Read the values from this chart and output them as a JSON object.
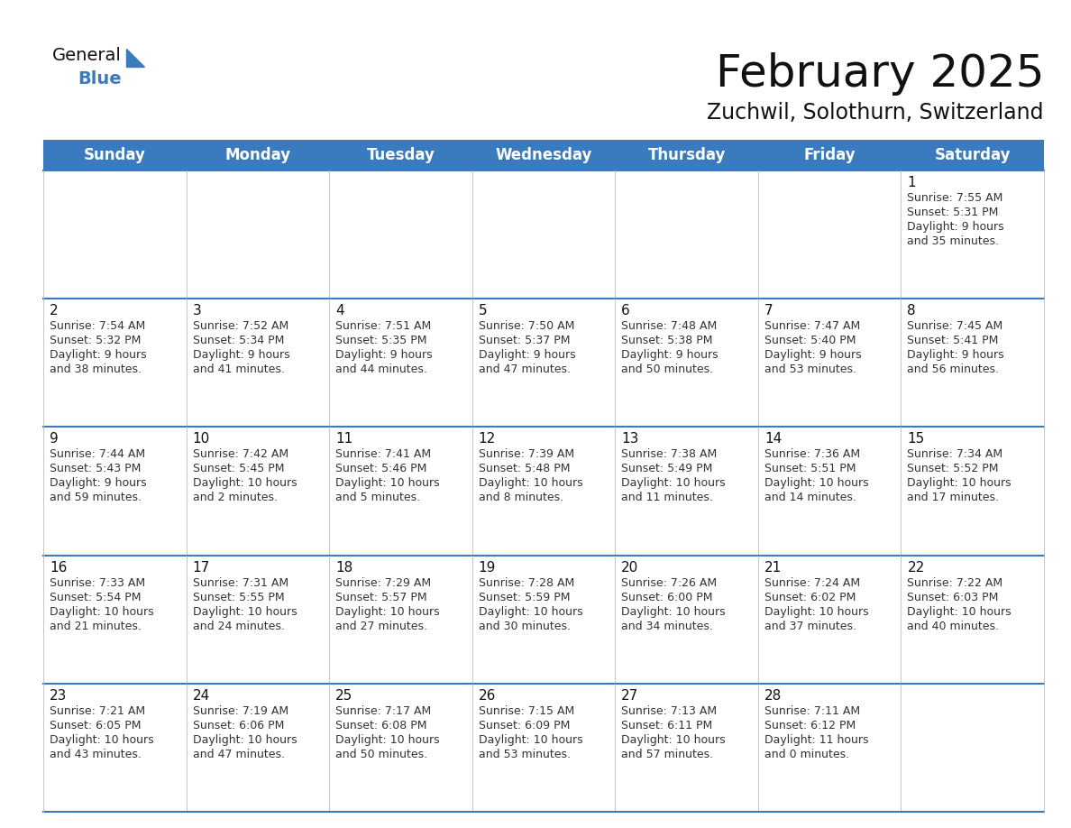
{
  "title": "February 2025",
  "subtitle": "Zuchwil, Solothurn, Switzerland",
  "header_color": "#3a7abf",
  "header_text_color": "#ffffff",
  "border_color": "#3a7abf",
  "cell_line_color": "#aaaaaa",
  "day_headers": [
    "Sunday",
    "Monday",
    "Tuesday",
    "Wednesday",
    "Thursday",
    "Friday",
    "Saturday"
  ],
  "title_fontsize": 36,
  "subtitle_fontsize": 17,
  "day_num_fontsize": 11,
  "cell_text_fontsize": 9,
  "header_fontsize": 12,
  "calendar_data": [
    [
      null,
      null,
      null,
      null,
      null,
      null,
      {
        "day": "1",
        "sunrise": "7:55 AM",
        "sunset": "5:31 PM",
        "daylight_line1": "9 hours",
        "daylight_line2": "and 35 minutes."
      }
    ],
    [
      {
        "day": "2",
        "sunrise": "7:54 AM",
        "sunset": "5:32 PM",
        "daylight_line1": "9 hours",
        "daylight_line2": "and 38 minutes."
      },
      {
        "day": "3",
        "sunrise": "7:52 AM",
        "sunset": "5:34 PM",
        "daylight_line1": "9 hours",
        "daylight_line2": "and 41 minutes."
      },
      {
        "day": "4",
        "sunrise": "7:51 AM",
        "sunset": "5:35 PM",
        "daylight_line1": "9 hours",
        "daylight_line2": "and 44 minutes."
      },
      {
        "day": "5",
        "sunrise": "7:50 AM",
        "sunset": "5:37 PM",
        "daylight_line1": "9 hours",
        "daylight_line2": "and 47 minutes."
      },
      {
        "day": "6",
        "sunrise": "7:48 AM",
        "sunset": "5:38 PM",
        "daylight_line1": "9 hours",
        "daylight_line2": "and 50 minutes."
      },
      {
        "day": "7",
        "sunrise": "7:47 AM",
        "sunset": "5:40 PM",
        "daylight_line1": "9 hours",
        "daylight_line2": "and 53 minutes."
      },
      {
        "day": "8",
        "sunrise": "7:45 AM",
        "sunset": "5:41 PM",
        "daylight_line1": "9 hours",
        "daylight_line2": "and 56 minutes."
      }
    ],
    [
      {
        "day": "9",
        "sunrise": "7:44 AM",
        "sunset": "5:43 PM",
        "daylight_line1": "9 hours",
        "daylight_line2": "and 59 minutes."
      },
      {
        "day": "10",
        "sunrise": "7:42 AM",
        "sunset": "5:45 PM",
        "daylight_line1": "10 hours",
        "daylight_line2": "and 2 minutes."
      },
      {
        "day": "11",
        "sunrise": "7:41 AM",
        "sunset": "5:46 PM",
        "daylight_line1": "10 hours",
        "daylight_line2": "and 5 minutes."
      },
      {
        "day": "12",
        "sunrise": "7:39 AM",
        "sunset": "5:48 PM",
        "daylight_line1": "10 hours",
        "daylight_line2": "and 8 minutes."
      },
      {
        "day": "13",
        "sunrise": "7:38 AM",
        "sunset": "5:49 PM",
        "daylight_line1": "10 hours",
        "daylight_line2": "and 11 minutes."
      },
      {
        "day": "14",
        "sunrise": "7:36 AM",
        "sunset": "5:51 PM",
        "daylight_line1": "10 hours",
        "daylight_line2": "and 14 minutes."
      },
      {
        "day": "15",
        "sunrise": "7:34 AM",
        "sunset": "5:52 PM",
        "daylight_line1": "10 hours",
        "daylight_line2": "and 17 minutes."
      }
    ],
    [
      {
        "day": "16",
        "sunrise": "7:33 AM",
        "sunset": "5:54 PM",
        "daylight_line1": "10 hours",
        "daylight_line2": "and 21 minutes."
      },
      {
        "day": "17",
        "sunrise": "7:31 AM",
        "sunset": "5:55 PM",
        "daylight_line1": "10 hours",
        "daylight_line2": "and 24 minutes."
      },
      {
        "day": "18",
        "sunrise": "7:29 AM",
        "sunset": "5:57 PM",
        "daylight_line1": "10 hours",
        "daylight_line2": "and 27 minutes."
      },
      {
        "day": "19",
        "sunrise": "7:28 AM",
        "sunset": "5:59 PM",
        "daylight_line1": "10 hours",
        "daylight_line2": "and 30 minutes."
      },
      {
        "day": "20",
        "sunrise": "7:26 AM",
        "sunset": "6:00 PM",
        "daylight_line1": "10 hours",
        "daylight_line2": "and 34 minutes."
      },
      {
        "day": "21",
        "sunrise": "7:24 AM",
        "sunset": "6:02 PM",
        "daylight_line1": "10 hours",
        "daylight_line2": "and 37 minutes."
      },
      {
        "day": "22",
        "sunrise": "7:22 AM",
        "sunset": "6:03 PM",
        "daylight_line1": "10 hours",
        "daylight_line2": "and 40 minutes."
      }
    ],
    [
      {
        "day": "23",
        "sunrise": "7:21 AM",
        "sunset": "6:05 PM",
        "daylight_line1": "10 hours",
        "daylight_line2": "and 43 minutes."
      },
      {
        "day": "24",
        "sunrise": "7:19 AM",
        "sunset": "6:06 PM",
        "daylight_line1": "10 hours",
        "daylight_line2": "and 47 minutes."
      },
      {
        "day": "25",
        "sunrise": "7:17 AM",
        "sunset": "6:08 PM",
        "daylight_line1": "10 hours",
        "daylight_line2": "and 50 minutes."
      },
      {
        "day": "26",
        "sunrise": "7:15 AM",
        "sunset": "6:09 PM",
        "daylight_line1": "10 hours",
        "daylight_line2": "and 53 minutes."
      },
      {
        "day": "27",
        "sunrise": "7:13 AM",
        "sunset": "6:11 PM",
        "daylight_line1": "10 hours",
        "daylight_line2": "and 57 minutes."
      },
      {
        "day": "28",
        "sunrise": "7:11 AM",
        "sunset": "6:12 PM",
        "daylight_line1": "11 hours",
        "daylight_line2": "and 0 minutes."
      },
      null
    ]
  ]
}
